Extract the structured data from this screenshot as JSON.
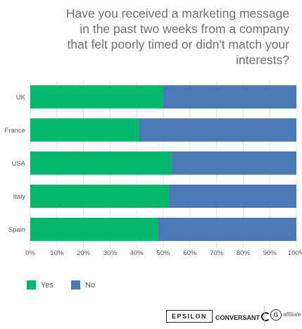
{
  "chart_data": {
    "type": "bar",
    "orientation": "horizontal",
    "stacked": true,
    "title": "Have you received a marketing message in the past two weeks from a company that felt poorly timed or didn't match your interests?",
    "categories": [
      "UK",
      "France",
      "USA",
      "Italy",
      "Spain"
    ],
    "series": [
      {
        "name": "Yes",
        "color": "#00b96b",
        "values": [
          50,
          41,
          53,
          52,
          48
        ]
      },
      {
        "name": "No",
        "color": "#4a79b8",
        "values": [
          50,
          59,
          47,
          48,
          52
        ]
      }
    ],
    "xlim": [
      0,
      100
    ],
    "ticks": [
      "0%",
      "10%",
      "20%",
      "30%",
      "40%",
      "50%",
      "60%",
      "70%",
      "80%",
      "90%",
      "100%"
    ],
    "grid": true,
    "legend_position": "bottom-left"
  },
  "footer": {
    "epsilon": "EPSILON",
    "conversant": "CONVERSANT",
    "affiliate": "affiliate"
  }
}
